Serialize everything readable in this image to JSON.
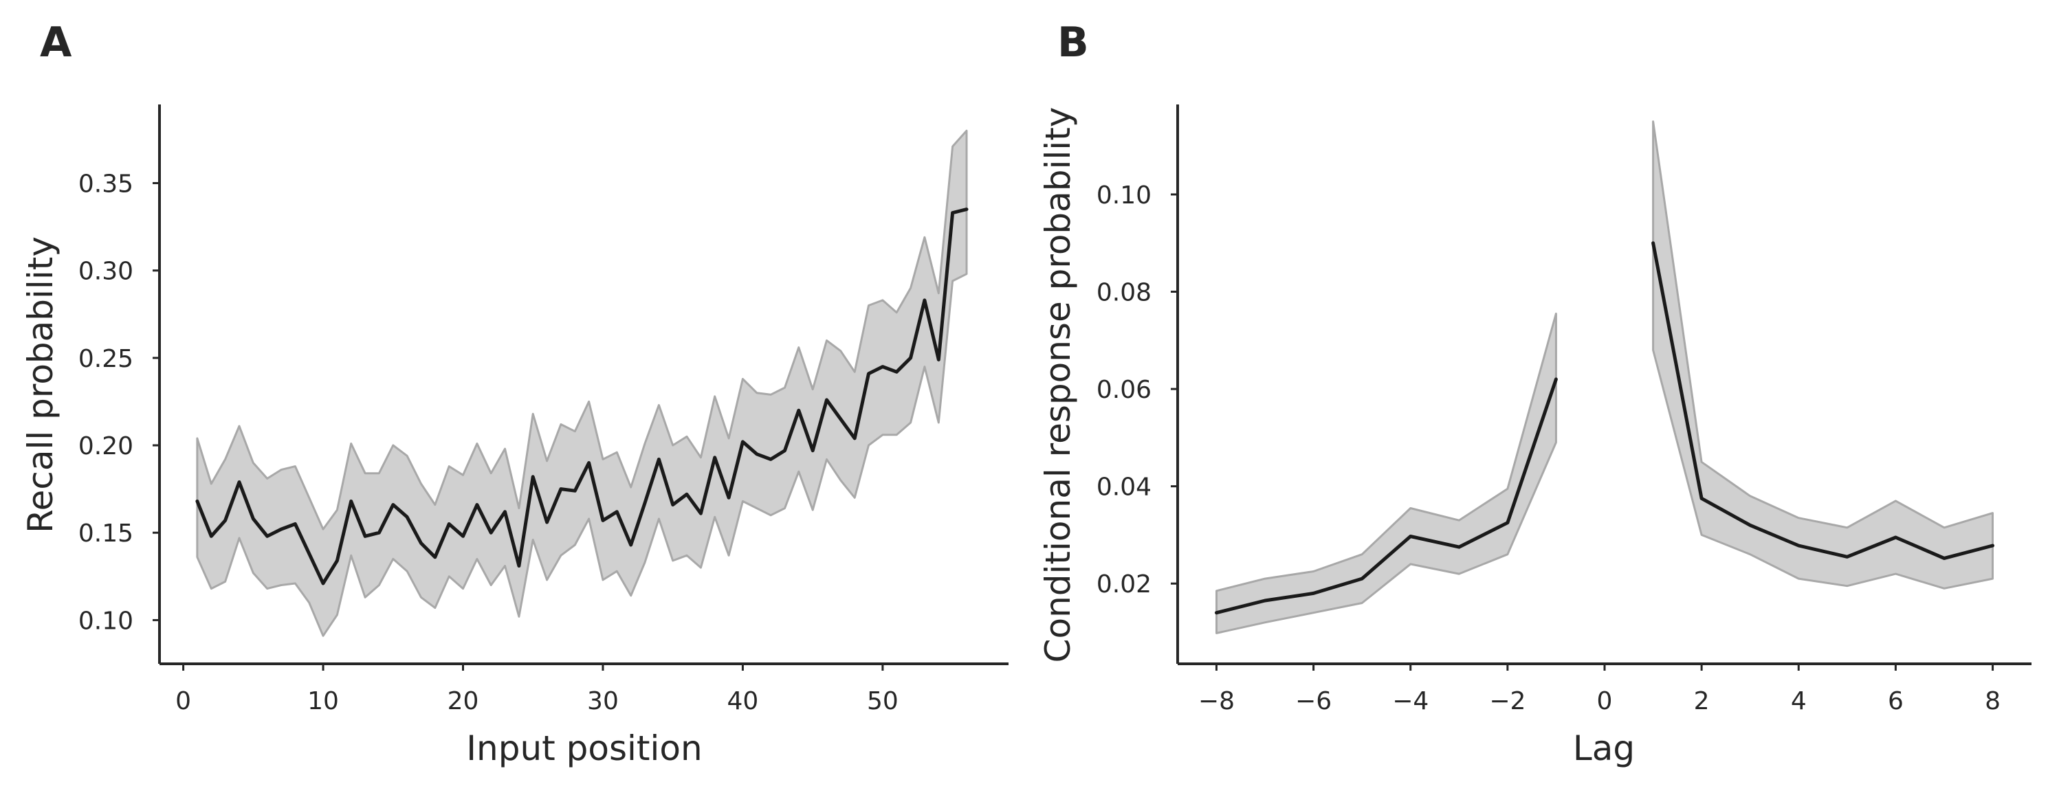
{
  "chart_data": [
    {
      "panel_letter": "A",
      "type": "line",
      "xlabel": "Input position",
      "ylabel": "Recall probability",
      "xlim": [
        -1.7,
        59
      ],
      "ylim": [
        0.075,
        0.395
      ],
      "xticks": [
        0,
        10,
        20,
        30,
        40,
        50
      ],
      "xtick_labels": [
        "0",
        "10",
        "20",
        "30",
        "40",
        "50"
      ],
      "yticks": [
        0.1,
        0.15,
        0.2,
        0.25,
        0.3,
        0.35
      ],
      "ytick_labels": [
        "0.10",
        "0.15",
        "0.20",
        "0.25",
        "0.30",
        "0.35"
      ],
      "grid": false,
      "line_color": "#1a1a1a",
      "band_color": "#c8c8c8",
      "series": [
        {
          "x": [
            1,
            2,
            3,
            4,
            5,
            6,
            7,
            8,
            9,
            10,
            11,
            12,
            13,
            14,
            15,
            16,
            17,
            18,
            19,
            20,
            21,
            22,
            23,
            24,
            25,
            26,
            27,
            28,
            29,
            30,
            31,
            32,
            33,
            34,
            35,
            36,
            37,
            38,
            39,
            40,
            41,
            42,
            43,
            44,
            45,
            46,
            47,
            48,
            49,
            50,
            51,
            52,
            53,
            54,
            55,
            56
          ],
          "y": [
            0.168,
            0.148,
            0.157,
            0.179,
            0.158,
            0.148,
            0.152,
            0.155,
            0.138,
            0.121,
            0.134,
            0.168,
            0.148,
            0.15,
            0.166,
            0.159,
            0.144,
            0.136,
            0.155,
            0.148,
            0.166,
            0.15,
            0.162,
            0.131,
            0.182,
            0.156,
            0.175,
            0.174,
            0.19,
            0.157,
            0.162,
            0.143,
            0.167,
            0.192,
            0.166,
            0.172,
            0.161,
            0.193,
            0.17,
            0.202,
            0.195,
            0.192,
            0.197,
            0.22,
            0.197,
            0.226,
            0.215,
            0.204,
            0.241,
            0.245,
            0.242,
            0.25,
            0.283,
            0.249,
            0.333,
            0.335
          ],
          "lower": [
            0.136,
            0.118,
            0.122,
            0.147,
            0.127,
            0.118,
            0.12,
            0.121,
            0.11,
            0.091,
            0.103,
            0.137,
            0.113,
            0.12,
            0.135,
            0.128,
            0.113,
            0.107,
            0.125,
            0.118,
            0.135,
            0.12,
            0.131,
            0.102,
            0.146,
            0.123,
            0.137,
            0.143,
            0.158,
            0.123,
            0.128,
            0.114,
            0.133,
            0.158,
            0.134,
            0.137,
            0.13,
            0.159,
            0.137,
            0.168,
            0.164,
            0.16,
            0.164,
            0.185,
            0.163,
            0.192,
            0.18,
            0.17,
            0.2,
            0.206,
            0.206,
            0.213,
            0.245,
            0.213,
            0.294,
            0.298
          ],
          "upper": [
            0.204,
            0.178,
            0.192,
            0.211,
            0.19,
            0.181,
            0.186,
            0.188,
            0.17,
            0.152,
            0.163,
            0.201,
            0.184,
            0.184,
            0.2,
            0.194,
            0.178,
            0.166,
            0.188,
            0.183,
            0.201,
            0.184,
            0.198,
            0.164,
            0.218,
            0.191,
            0.212,
            0.208,
            0.225,
            0.192,
            0.196,
            0.176,
            0.201,
            0.223,
            0.2,
            0.205,
            0.193,
            0.228,
            0.204,
            0.238,
            0.23,
            0.229,
            0.233,
            0.256,
            0.232,
            0.26,
            0.254,
            0.242,
            0.28,
            0.283,
            0.276,
            0.29,
            0.319,
            0.287,
            0.371,
            0.38
          ]
        }
      ]
    },
    {
      "panel_letter": "B",
      "type": "line",
      "xlabel": "Lag",
      "ylabel": "Conditional response probability",
      "xlim": [
        -8.8,
        8.8
      ],
      "ylim": [
        0.0035,
        0.1185
      ],
      "xticks": [
        -8,
        -6,
        -4,
        -2,
        0,
        2,
        4,
        6,
        8
      ],
      "xtick_labels": [
        "−8",
        "−6",
        "−4",
        "−2",
        "0",
        "2",
        "4",
        "6",
        "8"
      ],
      "yticks": [
        0.02,
        0.04,
        0.06,
        0.08,
        0.1
      ],
      "ytick_labels": [
        "0.02",
        "0.04",
        "0.06",
        "0.08",
        "0.10"
      ],
      "grid": false,
      "line_color": "#1a1a1a",
      "band_color": "#c8c8c8",
      "series": [
        {
          "x": [
            -8,
            -7,
            -6,
            -5,
            -4,
            -3,
            -2,
            -1
          ],
          "y": [
            0.014,
            0.0165,
            0.018,
            0.021,
            0.0297,
            0.0275,
            0.0325,
            0.062
          ],
          "lower": [
            0.0098,
            0.012,
            0.014,
            0.016,
            0.024,
            0.022,
            0.026,
            0.049
          ],
          "upper": [
            0.0185,
            0.021,
            0.0225,
            0.026,
            0.0355,
            0.033,
            0.0395,
            0.0755
          ]
        },
        {
          "x": [
            1,
            2,
            3,
            4,
            5,
            6,
            7,
            8
          ],
          "y": [
            0.09,
            0.0375,
            0.032,
            0.0278,
            0.0255,
            0.0295,
            0.0252,
            0.0278
          ],
          "lower": [
            0.068,
            0.03,
            0.026,
            0.021,
            0.0195,
            0.022,
            0.019,
            0.021
          ],
          "upper": [
            0.115,
            0.045,
            0.038,
            0.0335,
            0.0315,
            0.037,
            0.0315,
            0.0345
          ]
        }
      ]
    }
  ]
}
